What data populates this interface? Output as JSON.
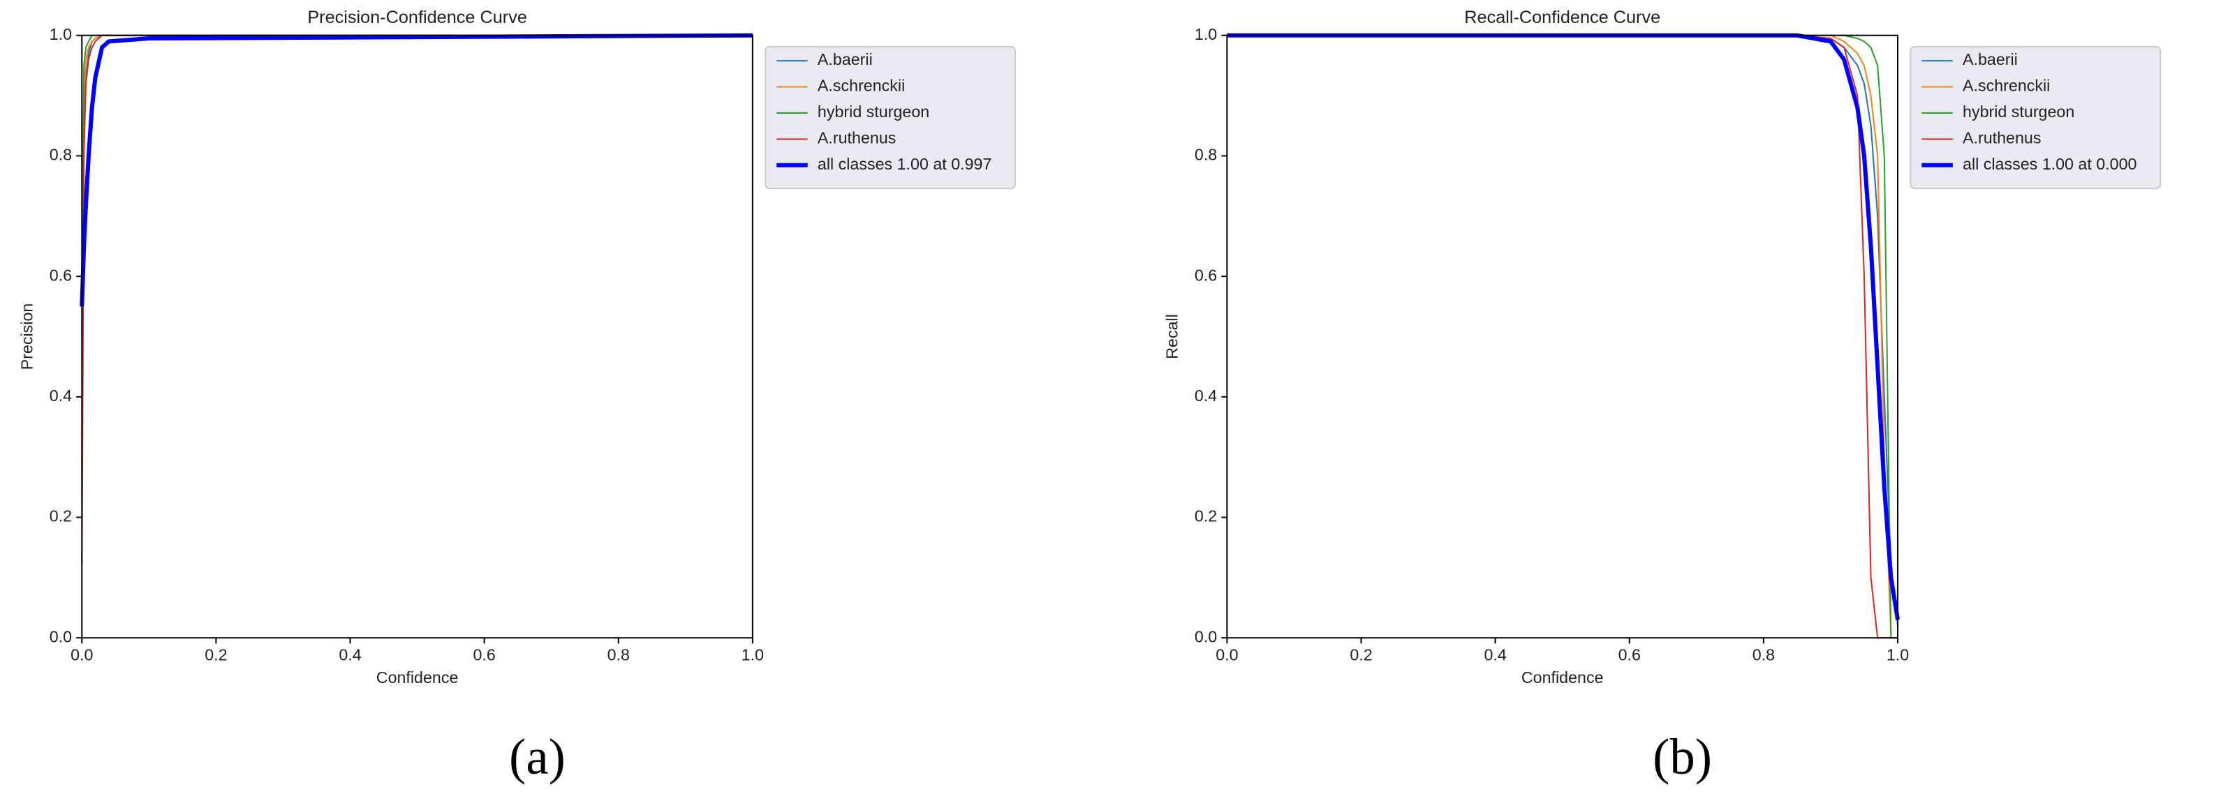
{
  "chart_data": [
    {
      "type": "line",
      "title": "Precision-Confidence Curve",
      "xlabel": "Confidence",
      "ylabel": "Precision",
      "caption": "(a)",
      "xlim": [
        0,
        1
      ],
      "ylim": [
        0,
        1
      ],
      "xticks": [
        {
          "value": 0,
          "label": "0.0"
        },
        0.2,
        0.4,
        0.6,
        0.8,
        {
          "value": 1,
          "label": "1.0"
        }
      ],
      "yticks": [
        {
          "value": 0,
          "label": "0.0"
        },
        0.2,
        0.4,
        0.6,
        0.8,
        {
          "value": 1,
          "label": "1.0"
        }
      ],
      "legend": "upper right outside",
      "x": [
        0,
        0.003,
        0.006,
        0.01,
        0.015,
        0.02,
        0.03,
        0.04,
        0.1,
        1
      ],
      "series": [
        {
          "name": "A.baerii",
          "color": "#1f77b4",
          "linewidth": 1,
          "values": [
            0.5,
            0.85,
            0.93,
            0.97,
            0.99,
            0.995,
            1,
            1,
            1,
            1
          ]
        },
        {
          "name": "A.schrenckii",
          "color": "#ff7f0e",
          "linewidth": 1,
          "values": [
            0.6,
            0.9,
            0.96,
            0.98,
            0.99,
            0.995,
            1,
            1,
            1,
            1
          ]
        },
        {
          "name": "hybrid sturgeon",
          "color": "#2ca02c",
          "linewidth": 1,
          "values": [
            0.55,
            0.95,
            0.98,
            0.99,
            1,
            1,
            1,
            1,
            1,
            1
          ]
        },
        {
          "name": "A.ruthenus",
          "color": "#d62728",
          "linewidth": 1,
          "values": [
            0.12,
            0.8,
            0.92,
            0.96,
            0.98,
            0.99,
            1,
            1,
            1,
            1
          ]
        },
        {
          "name": "all classes 1.00 at 0.997",
          "color": "#0000ff",
          "linewidth": 3,
          "values": [
            0.55,
            0.65,
            0.72,
            0.8,
            0.88,
            0.93,
            0.98,
            0.99,
            0.995,
            1
          ]
        }
      ]
    },
    {
      "type": "line",
      "title": "Recall-Confidence Curve",
      "xlabel": "Confidence",
      "ylabel": "Recall",
      "caption": "(b)",
      "xlim": [
        0,
        1
      ],
      "ylim": [
        0,
        1
      ],
      "xticks": [
        {
          "value": 0,
          "label": "0.0"
        },
        0.2,
        0.4,
        0.6,
        0.8,
        {
          "value": 1,
          "label": "1.0"
        }
      ],
      "yticks": [
        {
          "value": 0,
          "label": "0.0"
        },
        0.2,
        0.4,
        0.6,
        0.8,
        {
          "value": 1,
          "label": "1.0"
        }
      ],
      "legend": "upper right outside",
      "x": [
        0,
        0.85,
        0.9,
        0.92,
        0.94,
        0.95,
        0.96,
        0.97,
        0.98,
        0.99,
        1
      ],
      "series": [
        {
          "name": "A.baerii",
          "color": "#1f77b4",
          "linewidth": 1,
          "values": [
            1,
            1,
            0.995,
            0.98,
            0.95,
            0.92,
            0.85,
            0.7,
            0.4,
            0.12,
            0.02
          ]
        },
        {
          "name": "A.schrenckii",
          "color": "#ff7f0e",
          "linewidth": 1,
          "values": [
            1,
            1,
            1,
            0.99,
            0.97,
            0.95,
            0.9,
            0.8,
            0.3,
            0,
            0
          ]
        },
        {
          "name": "hybrid sturgeon",
          "color": "#2ca02c",
          "linewidth": 1,
          "values": [
            1,
            1,
            1,
            1,
            0.995,
            0.99,
            0.98,
            0.95,
            0.8,
            0,
            0
          ]
        },
        {
          "name": "A.ruthenus",
          "color": "#d62728",
          "linewidth": 1,
          "values": [
            1,
            1,
            0.995,
            0.98,
            0.9,
            0.6,
            0.1,
            0,
            0,
            0,
            0
          ]
        },
        {
          "name": "all classes 1.00 at 0.000",
          "color": "#0000ff",
          "linewidth": 3,
          "values": [
            1,
            1,
            0.99,
            0.96,
            0.88,
            0.8,
            0.65,
            0.45,
            0.25,
            0.1,
            0.03
          ]
        }
      ]
    }
  ]
}
